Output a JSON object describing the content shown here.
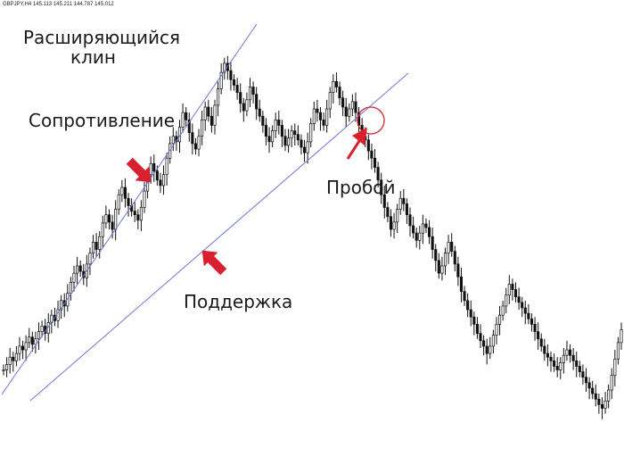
{
  "chart_data": {
    "type": "candlestick",
    "header_text": "GBPJPY,H4  145.113 145.211 144.787 145.012",
    "pattern_title_line1": "Расширяющийся",
    "pattern_title_line2": "клин",
    "annotations": {
      "resistance": "Сопротивление",
      "support": "Поддержка",
      "breakout": "Пробой"
    },
    "colors": {
      "candles": "#111111",
      "trendlines": "#6f76d6",
      "arrows": "#d9202f",
      "breakout_circle": "#d9202f"
    },
    "price_path_note_free": true,
    "closes": [
      44,
      50,
      58,
      54,
      62,
      70,
      66,
      74,
      80,
      72,
      78,
      86,
      92,
      84,
      96,
      104,
      98,
      110,
      120,
      114,
      128,
      140,
      150,
      158,
      152,
      145,
      160,
      172,
      184,
      176,
      190,
      205,
      214,
      206,
      198,
      220,
      236,
      244,
      232,
      224,
      218,
      214,
      208,
      222,
      240,
      258,
      270,
      262,
      252,
      246,
      258,
      276,
      292,
      300,
      294,
      310,
      326,
      318,
      304,
      292,
      286,
      300,
      318,
      332,
      322,
      312,
      334,
      352,
      370,
      380,
      372,
      362,
      356,
      348,
      336,
      328,
      340,
      354,
      346,
      330,
      322,
      312,
      300,
      294,
      306,
      318,
      312,
      300,
      290,
      298,
      306,
      302,
      296,
      288,
      282,
      294,
      314,
      330,
      326,
      318,
      312,
      330,
      348,
      360,
      354,
      342,
      332,
      322,
      330,
      338,
      326,
      312,
      300,
      296,
      284,
      276,
      266,
      252,
      236,
      222,
      212,
      198,
      206,
      220,
      232,
      226,
      214,
      202,
      194,
      186,
      194,
      204,
      200,
      190,
      176,
      164,
      150,
      158,
      172,
      184,
      174,
      160,
      146,
      130,
      120,
      110,
      102,
      94,
      84,
      76,
      70,
      62,
      70,
      82,
      94,
      104,
      114,
      126,
      138,
      132,
      124,
      118,
      112,
      106,
      100,
      94,
      86,
      78,
      70,
      62,
      58,
      54,
      48,
      44,
      52,
      60,
      66,
      60,
      54,
      48,
      42,
      36,
      30,
      24,
      18,
      12,
      6,
      2,
      10,
      22,
      38,
      56,
      74,
      88
    ]
  }
}
